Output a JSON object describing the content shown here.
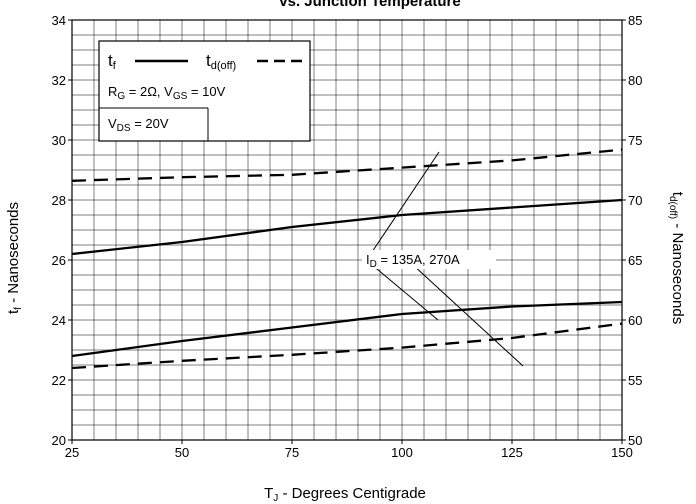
{
  "chart_data": {
    "type": "line",
    "title": "vs. Junction Temperature",
    "xlabel": "T_J - Degrees Centigrade",
    "ylabel_left": "t_f - Nanoseconds",
    "ylabel_right": "t_d(off) - Nanoseconds",
    "xlim": [
      25,
      150
    ],
    "ylim_left": [
      20,
      34
    ],
    "ylim_right": [
      50,
      85
    ],
    "x_ticks": [
      25,
      50,
      75,
      100,
      125,
      150
    ],
    "y_ticks_left": [
      20,
      22,
      24,
      26,
      28,
      30,
      32,
      34
    ],
    "y_ticks_right": [
      50,
      55,
      60,
      65,
      70,
      75,
      80,
      85
    ],
    "grid": true,
    "legend": {
      "position": "top-left",
      "tf_label": "t_f",
      "td_label": "t_d(off)",
      "cond1": "R_G = 2Ω, V_GS = 10V",
      "cond2": "V_DS = 20V"
    },
    "annotation": "I_D = 135A, 270A",
    "series": [
      {
        "name": "t_f",
        "axis": "left",
        "style": "solid",
        "x": [
          25,
          50,
          75,
          100,
          125,
          150
        ],
        "values": [
          26.2,
          26.6,
          27.1,
          27.5,
          27.75,
          28.0
        ]
      },
      {
        "name": "t_d(off)",
        "axis": "right",
        "style": "dashed",
        "x": [
          25,
          50,
          75,
          100,
          125,
          150
        ],
        "values": [
          71.6,
          71.9,
          72.1,
          72.7,
          73.3,
          74.2
        ]
      },
      {
        "name": "t_f",
        "axis": "left",
        "style": "solid",
        "x": [
          25,
          50,
          75,
          100,
          125,
          150
        ],
        "values": [
          22.8,
          23.3,
          23.75,
          24.2,
          24.45,
          24.6
        ]
      },
      {
        "name": "t_d(off)",
        "axis": "right",
        "style": "dashed",
        "x": [
          25,
          50,
          75,
          100,
          125,
          150
        ],
        "values": [
          56.0,
          56.6,
          57.1,
          57.7,
          58.5,
          59.7
        ]
      }
    ]
  }
}
